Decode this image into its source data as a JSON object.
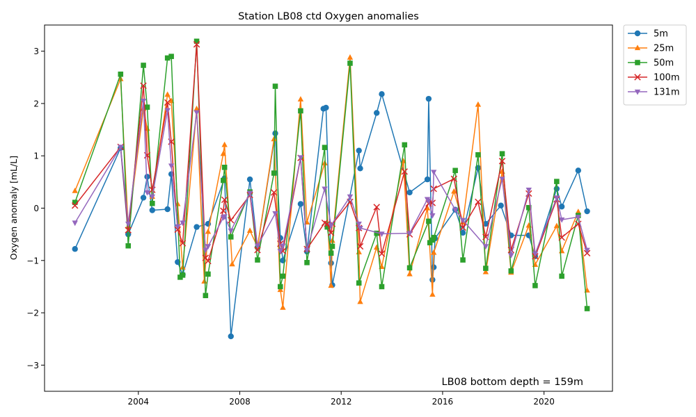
{
  "chart_data": {
    "type": "line",
    "title": "Station LB08 ctd Oxygen anomalies",
    "xlabel": "",
    "ylabel": "Oxygen anomaly [mL/L]",
    "annotation": "LB08 bottom depth = 159m",
    "xlim": [
      2000.3,
      2022.7
    ],
    "ylim": [
      -3.5,
      3.5
    ],
    "xticks": [
      2004,
      2008,
      2012,
      2016,
      2020
    ],
    "yticks": [
      -3,
      -2,
      -1,
      0,
      1,
      2,
      3
    ],
    "grid": false,
    "legend_position": "outside-top-right",
    "series": [
      {
        "name": "5m",
        "color": "#1f77b4",
        "marker": "circle",
        "x": [
          2001.5,
          2003.3,
          2003.6,
          2004.2,
          2004.35,
          2004.55,
          2005.15,
          2005.3,
          2005.55,
          2005.75,
          2006.3,
          2006.75,
          2007.4,
          2007.65,
          2008.4,
          2008.7,
          2009.4,
          2009.6,
          2009.7,
          2010.4,
          2010.65,
          2011.3,
          2011.4,
          2011.6,
          2011.65,
          2012.7,
          2012.75,
          2013.4,
          2013.6,
          2014.7,
          2015.4,
          2015.45,
          2015.6,
          2015.65,
          2015.7,
          2016.5,
          2016.8,
          2017.4,
          2017.7,
          2018.3,
          2018.7,
          2019.4,
          2019.65,
          2020.5,
          2020.7,
          2021.35,
          2021.7
        ],
        "y": [
          -0.78,
          1.15,
          -0.5,
          0.2,
          0.6,
          -0.04,
          -0.02,
          0.65,
          -1.03,
          -1.27,
          -0.36,
          -0.3,
          0.57,
          -2.45,
          0.55,
          -0.75,
          1.43,
          -0.57,
          -1.0,
          0.08,
          -0.83,
          1.9,
          1.92,
          -1.05,
          -1.47,
          1.1,
          0.76,
          1.82,
          2.18,
          0.3,
          0.55,
          2.09,
          -1.37,
          -1.13,
          -0.58,
          -0.03,
          -0.47,
          0.77,
          -0.3,
          0.05,
          -0.52,
          -0.52,
          -0.92,
          0.37,
          0.03,
          0.72,
          -0.06
        ]
      },
      {
        "name": "25m",
        "color": "#ff7f0e",
        "marker": "triangle-up",
        "x": [
          2001.5,
          2003.3,
          2003.6,
          2004.2,
          2004.35,
          2004.55,
          2005.15,
          2005.3,
          2005.55,
          2005.75,
          2006.3,
          2006.6,
          2006.75,
          2007.35,
          2007.4,
          2007.7,
          2008.4,
          2008.7,
          2009.35,
          2009.6,
          2009.7,
          2010.4,
          2010.65,
          2011.35,
          2011.6,
          2011.65,
          2012.35,
          2012.7,
          2012.75,
          2013.4,
          2013.6,
          2014.45,
          2014.7,
          2015.4,
          2015.6,
          2015.65,
          2016.45,
          2016.8,
          2017.4,
          2017.7,
          2018.35,
          2018.7,
          2019.4,
          2019.65,
          2020.5,
          2020.7,
          2021.35,
          2021.7
        ],
        "y": [
          0.33,
          2.47,
          -0.35,
          1.9,
          1.52,
          0.22,
          2.17,
          2.05,
          0.08,
          -1.13,
          1.9,
          -1.4,
          -0.45,
          1.04,
          1.21,
          -1.07,
          -0.43,
          -0.74,
          1.32,
          -1.56,
          -1.9,
          2.08,
          -0.27,
          0.86,
          -1.48,
          -0.62,
          2.88,
          -0.84,
          -1.79,
          -0.75,
          -1.12,
          0.9,
          -1.26,
          0.0,
          -1.65,
          -0.85,
          0.32,
          -0.27,
          1.98,
          -1.22,
          0.7,
          -1.23,
          -0.33,
          -1.08,
          -0.34,
          -0.82,
          -0.07,
          -1.57
        ]
      },
      {
        "name": "50m",
        "color": "#2ca02c",
        "marker": "square",
        "x": [
          2001.5,
          2003.3,
          2003.6,
          2004.2,
          2004.35,
          2004.55,
          2005.15,
          2005.3,
          2005.65,
          2005.75,
          2006.3,
          2006.65,
          2006.75,
          2007.35,
          2007.4,
          2007.65,
          2008.4,
          2008.7,
          2009.35,
          2009.4,
          2009.6,
          2009.7,
          2010.4,
          2010.65,
          2011.35,
          2011.45,
          2011.6,
          2011.65,
          2012.35,
          2012.7,
          2013.4,
          2013.6,
          2014.5,
          2014.7,
          2015.45,
          2015.5,
          2015.6,
          2015.65,
          2016.5,
          2016.8,
          2017.4,
          2017.7,
          2018.35,
          2018.7,
          2019.4,
          2019.65,
          2020.5,
          2020.7,
          2021.35,
          2021.7
        ],
        "y": [
          0.11,
          2.56,
          -0.72,
          2.73,
          1.93,
          0.09,
          2.87,
          2.9,
          -1.32,
          -1.28,
          3.19,
          -1.67,
          -1.26,
          0.53,
          0.78,
          -0.55,
          0.31,
          -0.99,
          0.67,
          2.33,
          -1.5,
          -1.3,
          1.86,
          -1.04,
          1.16,
          -0.36,
          -0.86,
          -0.73,
          2.77,
          -1.43,
          -0.48,
          -1.5,
          1.21,
          -1.14,
          -0.25,
          -0.66,
          -0.61,
          -0.56,
          0.72,
          -0.99,
          1.02,
          -1.15,
          1.04,
          -1.2,
          0.01,
          -1.48,
          0.51,
          -1.3,
          -0.14,
          -1.92
        ]
      },
      {
        "name": "100m",
        "color": "#d62728",
        "marker": "x",
        "x": [
          2001.5,
          2003.3,
          2003.6,
          2004.2,
          2004.35,
          2004.55,
          2005.15,
          2005.3,
          2005.55,
          2005.75,
          2006.3,
          2006.65,
          2006.75,
          2007.35,
          2007.4,
          2007.65,
          2008.4,
          2008.7,
          2009.35,
          2009.6,
          2009.7,
          2010.4,
          2010.65,
          2011.35,
          2011.45,
          2011.6,
          2011.65,
          2012.35,
          2012.7,
          2012.75,
          2013.4,
          2013.6,
          2014.5,
          2014.7,
          2015.45,
          2015.6,
          2015.65,
          2016.45,
          2016.8,
          2017.4,
          2017.7,
          2018.35,
          2018.7,
          2019.4,
          2019.65,
          2020.5,
          2020.7,
          2021.35,
          2021.7
        ],
        "y": [
          0.05,
          1.17,
          -0.42,
          2.34,
          1.01,
          0.35,
          2.02,
          1.27,
          -0.41,
          -0.67,
          3.13,
          -0.95,
          -1.01,
          -0.05,
          0.16,
          -0.23,
          0.25,
          -0.8,
          0.3,
          -0.68,
          -0.82,
          0.96,
          -0.78,
          -0.28,
          -0.3,
          -0.47,
          -0.3,
          0.12,
          -0.38,
          -0.73,
          0.02,
          -0.87,
          0.7,
          -0.5,
          0.09,
          0.1,
          0.37,
          0.56,
          -0.37,
          0.12,
          -0.55,
          0.9,
          -0.8,
          0.28,
          -0.92,
          0.17,
          -0.56,
          -0.3,
          -0.86
        ]
      },
      {
        "name": "131m",
        "color": "#9467bd",
        "marker": "triangle-down",
        "x": [
          2001.5,
          2003.3,
          2003.6,
          2004.2,
          2004.35,
          2004.55,
          2005.15,
          2005.3,
          2005.55,
          2005.75,
          2006.3,
          2006.65,
          2006.75,
          2007.35,
          2007.4,
          2007.65,
          2008.4,
          2008.7,
          2009.4,
          2009.6,
          2009.7,
          2010.4,
          2010.65,
          2011.35,
          2011.6,
          2012.35,
          2012.7,
          2012.75,
          2013.6,
          2014.7,
          2015.4,
          2015.45,
          2015.6,
          2015.65,
          2016.5,
          2016.8,
          2017.7,
          2018.35,
          2018.7,
          2019.4,
          2019.65,
          2020.5,
          2020.7,
          2021.35,
          2021.7
        ],
        "y": [
          -0.28,
          1.17,
          -0.3,
          2.05,
          0.3,
          0.22,
          1.87,
          0.81,
          -0.35,
          -0.28,
          1.83,
          -0.8,
          -0.73,
          -0.18,
          -0.16,
          -0.43,
          0.29,
          -0.72,
          -0.1,
          -0.82,
          -0.72,
          0.97,
          -0.8,
          0.37,
          -0.33,
          0.22,
          -0.3,
          -0.38,
          -0.49,
          -0.48,
          0.17,
          0.14,
          -0.14,
          0.69,
          -0.03,
          -0.23,
          -0.73,
          0.56,
          -0.9,
          0.35,
          -0.87,
          0.2,
          -0.22,
          -0.17,
          -0.8
        ]
      }
    ]
  }
}
